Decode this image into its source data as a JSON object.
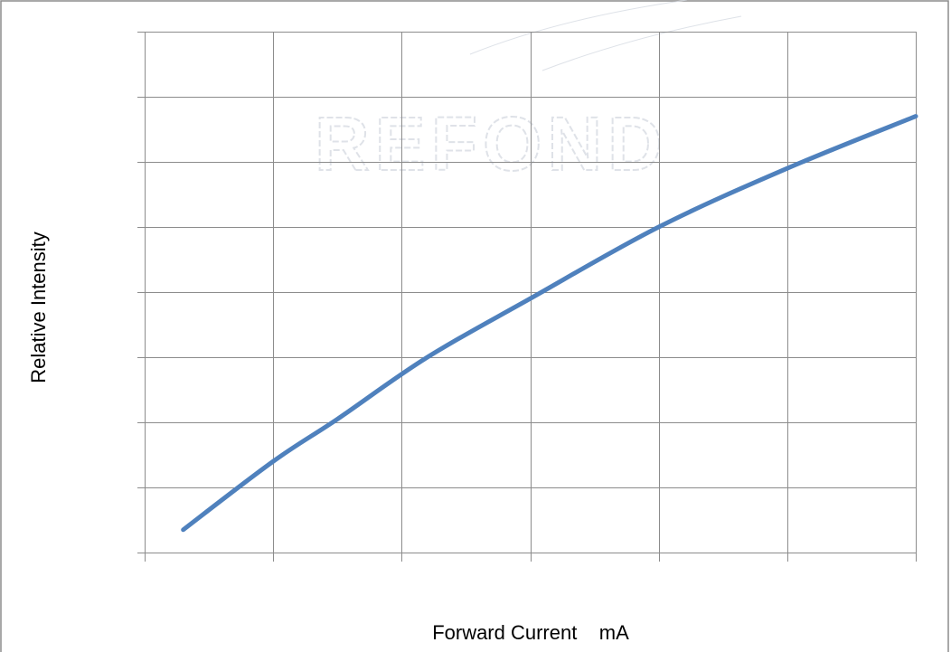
{
  "chart_data": {
    "type": "line",
    "title": "",
    "xlabel": "Forward Current    mA",
    "ylabel": "Relative Intensity",
    "grid": true,
    "xlim": [
      0,
      6
    ],
    "ylim": [
      0,
      8
    ],
    "x_gridlines": 6,
    "y_gridlines": 8,
    "series": [
      {
        "color": "#4f81bd",
        "x": [
          0.3,
          1.0,
          1.5,
          2.2,
          3.0,
          4.0,
          5.0,
          6.0
        ],
        "y": [
          0.35,
          1.4,
          2.05,
          3.0,
          3.9,
          5.0,
          5.9,
          6.7
        ]
      }
    ]
  },
  "watermark": {
    "text": "REFOND"
  }
}
